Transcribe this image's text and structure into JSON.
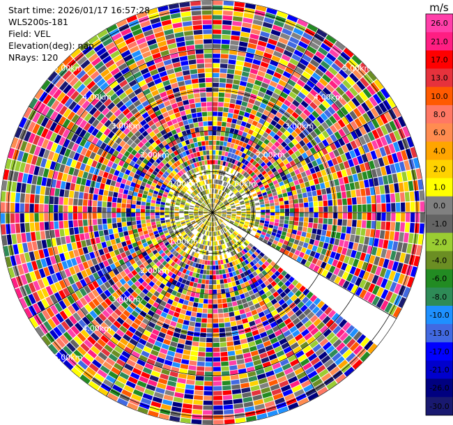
{
  "info": {
    "start_time": "Start time: 2026/01/17 16:57:28",
    "station": "WLS200s-181",
    "field": "Field: VEL",
    "elevation": "Elevation(deg): nan",
    "nrays": "NRays: 120"
  },
  "colorbar": {
    "unit": "m/s",
    "ticks": [
      "26.0",
      "21.0",
      "17.0",
      "13.0",
      "10.0",
      "8.0",
      "6.0",
      "4.0",
      "2.0",
      "1.0",
      "0.0",
      "-1.0",
      "-2.0",
      "-4.0",
      "-6.0",
      "-8.0",
      "-10.0",
      "-13.0",
      "-17.0",
      "-21.0",
      "-26.0",
      "-30.0"
    ],
    "colors": [
      "#ff3fa9",
      "#ff1e82",
      "#ff0000",
      "#e6323c",
      "#ff5a00",
      "#ff7864",
      "#ff8c50",
      "#ffa500",
      "#ffd200",
      "#ffff00",
      "#808080",
      "#646464",
      "#9acd32",
      "#6b8e23",
      "#228b22",
      "#2e8b57",
      "#1e90ff",
      "#4169e1",
      "#0000ff",
      "#0000cd",
      "#000080",
      "#191970"
    ]
  },
  "chart_data": {
    "type": "heatmap",
    "projection": "polar PPI",
    "field": "VEL",
    "units": "m/s",
    "nrays": 120,
    "range_labels": [
      "1.00km",
      "2.00km",
      "3.00km",
      "4.00km",
      "5.00km"
    ],
    "range_label_units": "km",
    "max_range_km": 5.2,
    "missing_sector_deg": [
      120,
      130
    ],
    "vmin": -30.0,
    "vmax": 30.0
  }
}
